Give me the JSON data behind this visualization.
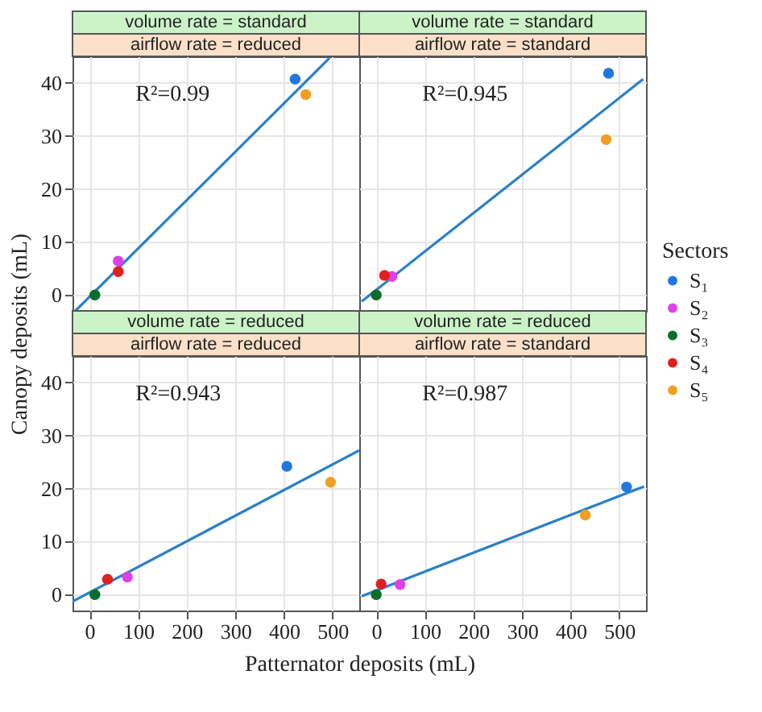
{
  "chart_data": [
    {
      "type": "scatter",
      "title": "volume rate = standard",
      "subtitle": "airflow rate = reduced",
      "ylabel": "Canopy deposits (mL)",
      "xlim": [
        -35,
        555
      ],
      "xticks": [
        0,
        100,
        200,
        300,
        400,
        500
      ],
      "ylim": [
        -3,
        45
      ],
      "yticks": [
        0,
        10,
        20,
        30,
        40
      ],
      "grid": true,
      "marker": "circle",
      "tick_labels": "y",
      "legend": "right",
      "legend_title": "Sectors",
      "annotations": [
        "R²=0.99"
      ],
      "series": [
        {
          "type": "line",
          "marker": "none",
          "color": "#2b80c8",
          "x": [
            -29,
            494
          ],
          "values": [
            -3.0,
            44.7
          ]
        },
        {
          "name": "S₁",
          "color": "#1f78e0",
          "x": [
            423
          ],
          "values": [
            40.7
          ]
        },
        {
          "name": "S₂",
          "color": "#e040e8",
          "x": [
            59
          ],
          "values": [
            6.4
          ]
        },
        {
          "name": "S₃",
          "color": "#0a6e2a",
          "x": [
            11
          ],
          "values": [
            0
          ]
        },
        {
          "name": "S₄",
          "color": "#e0201e",
          "x": [
            59
          ],
          "values": [
            4.4
          ]
        },
        {
          "name": "S₅",
          "color": "#f0a020",
          "x": [
            445
          ],
          "values": [
            37.8
          ]
        }
      ]
    },
    {
      "type": "scatter",
      "title": "volume rate = standard",
      "subtitle": "airflow rate = standard",
      "xlim": [
        -35,
        555
      ],
      "xticks": [
        0,
        100,
        200,
        300,
        400,
        500
      ],
      "ylim": [
        -3,
        45
      ],
      "yticks": [
        0,
        10,
        20,
        30,
        40
      ],
      "grid": true,
      "marker": "circle",
      "tick_labels": false,
      "annotations": [
        "R²=0.945"
      ],
      "series": [
        {
          "type": "line",
          "marker": "none",
          "color": "#2b80c8",
          "x": [
            -30,
            549
          ],
          "values": [
            -1.2,
            40.7
          ]
        },
        {
          "name": "S₁",
          "color": "#1f78e0",
          "x": [
            478
          ],
          "values": [
            41.8
          ]
        },
        {
          "name": "S₂",
          "color": "#e040e8",
          "x": [
            32
          ],
          "values": [
            3.5
          ]
        },
        {
          "name": "S₃",
          "color": "#0a6e2a",
          "x": [
            0
          ],
          "values": [
            0
          ]
        },
        {
          "name": "S₄",
          "color": "#e0201e",
          "x": [
            17
          ],
          "values": [
            3.7
          ]
        },
        {
          "name": "S₅",
          "color": "#f0a020",
          "x": [
            473
          ],
          "values": [
            29.3
          ]
        }
      ]
    },
    {
      "type": "scatter",
      "title": "volume rate = reduced",
      "subtitle": "airflow rate = reduced",
      "xlabel": "Patternator deposits (mL)",
      "xlim": [
        -35,
        555
      ],
      "xticks": [
        0,
        100,
        200,
        300,
        400,
        500
      ],
      "ylim": [
        -3,
        45
      ],
      "yticks": [
        0,
        10,
        20,
        30,
        40
      ],
      "grid": true,
      "marker": "circle",
      "annotations": [
        "R²=0.943"
      ],
      "series": [
        {
          "type": "line",
          "marker": "none",
          "color": "#2b80c8",
          "x": [
            -35,
            555
          ],
          "values": [
            -1.3,
            27.2
          ]
        },
        {
          "name": "S₁",
          "color": "#1f78e0",
          "x": [
            406
          ],
          "values": [
            24.2
          ]
        },
        {
          "name": "S₂",
          "color": "#e040e8",
          "x": [
            78
          ],
          "values": [
            3.3
          ]
        },
        {
          "name": "S₃",
          "color": "#0a6e2a",
          "x": [
            11
          ],
          "values": [
            0
          ]
        },
        {
          "name": "S₄",
          "color": "#e0201e",
          "x": [
            37
          ],
          "values": [
            2.9
          ]
        },
        {
          "name": "S₅",
          "color": "#f0a020",
          "x": [
            496
          ],
          "values": [
            21.2
          ]
        }
      ]
    },
    {
      "type": "scatter",
      "title": "volume rate = reduced",
      "subtitle": "airflow rate = standard",
      "xlim": [
        -35,
        555
      ],
      "xticks": [
        0,
        100,
        200,
        300,
        400,
        500
      ],
      "ylim": [
        -3,
        45
      ],
      "yticks": [
        0,
        10,
        20,
        30,
        40
      ],
      "grid": true,
      "marker": "circle",
      "tick_labels": "x",
      "annotations": [
        "R²=0.987"
      ],
      "series": [
        {
          "type": "line",
          "marker": "none",
          "color": "#2b80c8",
          "x": [
            -30,
            551
          ],
          "values": [
            -0.3,
            20.4
          ]
        },
        {
          "name": "S₁",
          "color": "#1f78e0",
          "x": [
            515
          ],
          "values": [
            20.3
          ]
        },
        {
          "name": "S₂",
          "color": "#e040e8",
          "x": [
            49
          ],
          "values": [
            1.9
          ]
        },
        {
          "name": "S₃",
          "color": "#0a6e2a",
          "x": [
            0
          ],
          "values": [
            0
          ]
        },
        {
          "name": "S₄",
          "color": "#e0201e",
          "x": [
            10
          ],
          "values": [
            2.0
          ]
        },
        {
          "name": "S₅",
          "color": "#f0a020",
          "x": [
            430
          ],
          "values": [
            15.0
          ]
        }
      ]
    }
  ]
}
